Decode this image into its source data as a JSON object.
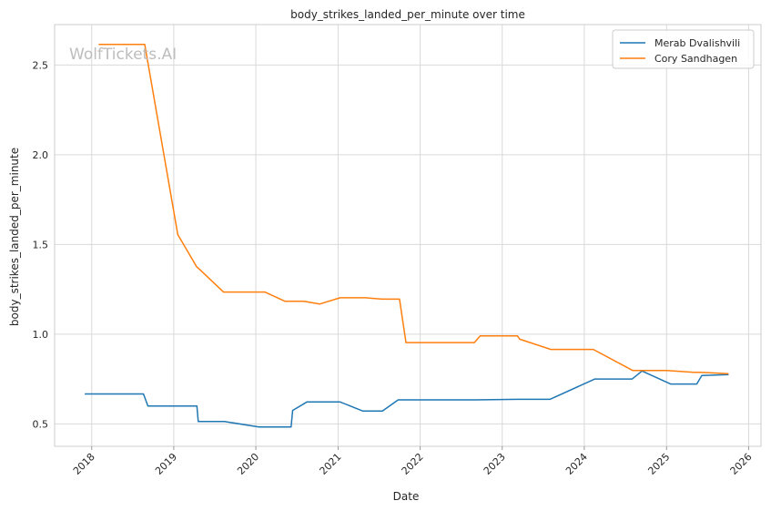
{
  "chart_data": {
    "type": "line",
    "title": "body_strikes_landed_per_minute over time",
    "xlabel": "Date",
    "ylabel": "body_strikes_landed_per_minute",
    "watermark": "WolfTickets.AI",
    "xlim": [
      "2017-07-20",
      "2026-02-25"
    ],
    "ylim": [
      0.375,
      2.725
    ],
    "x_ticks": [
      "2018-01-01",
      "2019-01-01",
      "2020-01-01",
      "2021-01-01",
      "2022-01-01",
      "2023-01-01",
      "2024-01-01",
      "2025-01-01",
      "2026-01-01"
    ],
    "x_tick_labels": [
      "2018",
      "2019",
      "2020",
      "2021",
      "2022",
      "2023",
      "2024",
      "2025",
      "2026"
    ],
    "y_ticks": [
      0.5,
      1.0,
      1.5,
      2.0,
      2.5
    ],
    "y_tick_labels": [
      "0.5",
      "1.0",
      "1.5",
      "2.0",
      "2.5"
    ],
    "grid": true,
    "legend_position": "top-right",
    "series": [
      {
        "name": "Merab Dvalishvili",
        "color": "#1f77b4",
        "points": [
          [
            "2017-12-01",
            0.667
          ],
          [
            "2018-08-19",
            0.667
          ],
          [
            "2018-09-08",
            0.6
          ],
          [
            "2019-04-14",
            0.6
          ],
          [
            "2019-04-20",
            0.513
          ],
          [
            "2019-08-15",
            0.513
          ],
          [
            "2020-01-15",
            0.483
          ],
          [
            "2020-06-06",
            0.483
          ],
          [
            "2020-06-13",
            0.575
          ],
          [
            "2020-08-15",
            0.622
          ],
          [
            "2021-01-10",
            0.622
          ],
          [
            "2021-04-20",
            0.572
          ],
          [
            "2021-07-17",
            0.572
          ],
          [
            "2021-09-25",
            0.634
          ],
          [
            "2022-09-01",
            0.634
          ],
          [
            "2023-03-11",
            0.637
          ],
          [
            "2023-08-01",
            0.637
          ],
          [
            "2024-02-17",
            0.75
          ],
          [
            "2024-08-01",
            0.75
          ],
          [
            "2024-09-14",
            0.795
          ],
          [
            "2025-01-19",
            0.722
          ],
          [
            "2025-05-15",
            0.722
          ],
          [
            "2025-06-07",
            0.77
          ],
          [
            "2025-10-04",
            0.775
          ]
        ]
      },
      {
        "name": "Cory Sandhagen",
        "color": "#ff7f0e",
        "points": [
          [
            "2018-02-01",
            2.615
          ],
          [
            "2018-08-25",
            2.615
          ],
          [
            "2019-01-19",
            1.555
          ],
          [
            "2019-04-13",
            1.375
          ],
          [
            "2019-04-27",
            1.36
          ],
          [
            "2019-08-10",
            1.235
          ],
          [
            "2020-02-10",
            1.235
          ],
          [
            "2020-05-10",
            1.183
          ],
          [
            "2020-08-01",
            1.183
          ],
          [
            "2020-10-11",
            1.168
          ],
          [
            "2021-01-10",
            1.203
          ],
          [
            "2021-05-01",
            1.203
          ],
          [
            "2021-07-15",
            1.195
          ],
          [
            "2021-10-01",
            1.195
          ],
          [
            "2021-10-30",
            0.953
          ],
          [
            "2022-08-30",
            0.953
          ],
          [
            "2022-09-25",
            0.99
          ],
          [
            "2023-03-10",
            0.99
          ],
          [
            "2023-03-20",
            0.972
          ],
          [
            "2023-08-05",
            0.915
          ],
          [
            "2024-02-10",
            0.915
          ],
          [
            "2024-08-03",
            0.798
          ],
          [
            "2025-01-01",
            0.798
          ],
          [
            "2025-05-03",
            0.787
          ],
          [
            "2025-06-01",
            0.787
          ],
          [
            "2025-10-04",
            0.78
          ]
        ]
      }
    ]
  }
}
